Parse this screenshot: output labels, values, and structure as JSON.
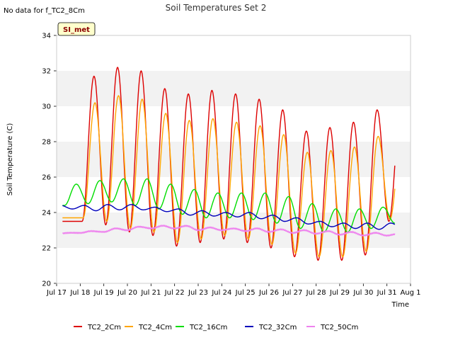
{
  "no_data_note": "No data for f_TC2_8Cm",
  "site_badge": "SI_met",
  "chart_data": {
    "type": "line",
    "title": "Soil Temperatures Set 2",
    "xlabel": "Time",
    "ylabel": "Soil Temperature (C)",
    "ylim": [
      20,
      34
    ],
    "yticks": [
      20,
      22,
      24,
      26,
      28,
      30,
      32,
      34
    ],
    "xlim_days": [
      17,
      32
    ],
    "xtick_labels": [
      "Jul 17",
      "Jul 18",
      "Jul 19",
      "Jul 20",
      "Jul 21",
      "Jul 22",
      "Jul 23",
      "Jul 24",
      "Jul 25",
      "Jul 26",
      "Jul 27",
      "Jul 28",
      "Jul 29",
      "Jul 30",
      "Jul 31",
      "Aug 1"
    ],
    "grid": "horizontal bands",
    "legend_position": "bottom",
    "series": [
      {
        "name": "TC2_2Cm",
        "color": "#dd0000",
        "peak_hour": 14,
        "daily_max": [
          null,
          31.7,
          32.2,
          32.0,
          31.0,
          30.7,
          30.9,
          30.7,
          30.4,
          29.8,
          28.6,
          28.8,
          29.1,
          29.8,
          29.8
        ],
        "daily_min": [
          23.5,
          23.5,
          23.3,
          22.9,
          22.7,
          22.1,
          22.3,
          22.5,
          22.3,
          22.0,
          21.5,
          21.3,
          21.3,
          21.6,
          23.5
        ]
      },
      {
        "name": "TC2_4Cm",
        "color": "#ffa500",
        "peak_hour": 15,
        "daily_max": [
          null,
          30.2,
          30.6,
          30.4,
          29.6,
          29.2,
          29.3,
          29.1,
          28.9,
          28.4,
          27.4,
          27.5,
          27.7,
          28.3,
          28.3
        ],
        "daily_min": [
          23.7,
          23.7,
          23.5,
          23.1,
          22.9,
          22.3,
          22.5,
          22.7,
          22.5,
          22.2,
          21.7,
          21.5,
          21.5,
          21.8,
          23.6
        ]
      },
      {
        "name": "TC2_16Cm",
        "color": "#00dd00",
        "peak_hour": 20,
        "daily_max": [
          25.6,
          25.8,
          25.9,
          25.9,
          25.6,
          25.3,
          25.1,
          25.1,
          25.1,
          24.9,
          24.5,
          24.2,
          24.2,
          24.3,
          24.4
        ],
        "daily_min": [
          24.4,
          24.5,
          24.6,
          24.4,
          24.2,
          23.9,
          23.7,
          23.7,
          23.6,
          23.4,
          23.1,
          22.9,
          22.9,
          23.1,
          23.4
        ]
      },
      {
        "name": "TC2_32Cm",
        "color": "#0000bb",
        "peak_hour": 4,
        "daily_max": [
          24.4,
          24.4,
          24.45,
          24.45,
          24.3,
          24.2,
          24.1,
          24.0,
          24.0,
          23.85,
          23.7,
          23.5,
          23.4,
          23.4,
          23.4
        ],
        "daily_min": [
          24.2,
          24.1,
          24.15,
          24.15,
          24.05,
          23.85,
          23.8,
          23.75,
          23.65,
          23.5,
          23.35,
          23.2,
          23.1,
          23.05,
          23.1
        ]
      },
      {
        "name": "TC2_50Cm",
        "color": "#ee82ee",
        "peak_hour": 12,
        "daily_max": [
          22.85,
          22.95,
          23.1,
          23.2,
          23.25,
          23.25,
          23.15,
          23.1,
          23.1,
          23.05,
          23.0,
          22.95,
          22.9,
          22.85,
          22.8
        ],
        "daily_min": [
          22.8,
          22.85,
          22.9,
          23.0,
          23.1,
          23.1,
          23.0,
          23.0,
          22.95,
          22.9,
          22.85,
          22.8,
          22.75,
          22.7,
          22.7
        ]
      }
    ]
  }
}
